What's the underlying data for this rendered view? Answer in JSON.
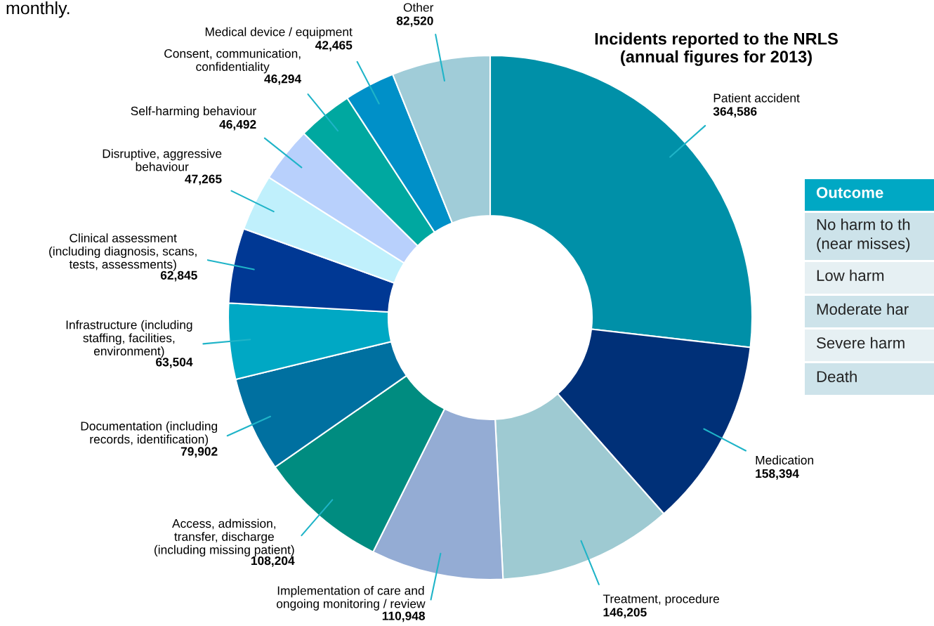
{
  "chart_data": {
    "type": "donut",
    "title": "Incidents reported to the NRLS\n(annual figures for 2013)",
    "categories": [
      "Patient accident",
      "Medication",
      "Treatment, procedure",
      "Implementation of care and\nongoing monitoring / review",
      "Access, admission,\ntransfer, discharge\n(including missing patient)",
      "Documentation (including\nrecords, identification)",
      "Infrastructure (including\nstaffing, facilities,\nenvironment)",
      "Clinical assessment\n(including diagnosis, scans,\ntests, assessments)",
      "Disruptive, aggressive\nbehaviour",
      "Self-harming behaviour",
      "Consent, communication,\nconfidentiality",
      "Medical device / equipment",
      "Other"
    ],
    "values": [
      364586,
      158394,
      146205,
      110948,
      108204,
      79902,
      63504,
      62845,
      47265,
      46492,
      46294,
      42465,
      82520
    ],
    "value_labels": [
      "364,586",
      "158,394",
      "146,205",
      "110,948",
      "108,204",
      "79,902",
      "63,504",
      "62,845",
      "47,265",
      "46,492",
      "46,294",
      "42,465",
      "82,520"
    ],
    "colors": [
      "#0090a8",
      "#003078",
      "#9ecad2",
      "#94acd4",
      "#008c80",
      "#0070a0",
      "#00a8c4",
      "#003894",
      "#c0f0fc",
      "#b8d0fc",
      "#00a8a0",
      "#0090c8",
      "#a0ccd8"
    ],
    "annotations": [
      "monthly.",
      "Outcome",
      "No harm to th\n(near misses)",
      "Low harm",
      "Moderate har",
      "Severe harm",
      "Death"
    ],
    "legend": false
  }
}
